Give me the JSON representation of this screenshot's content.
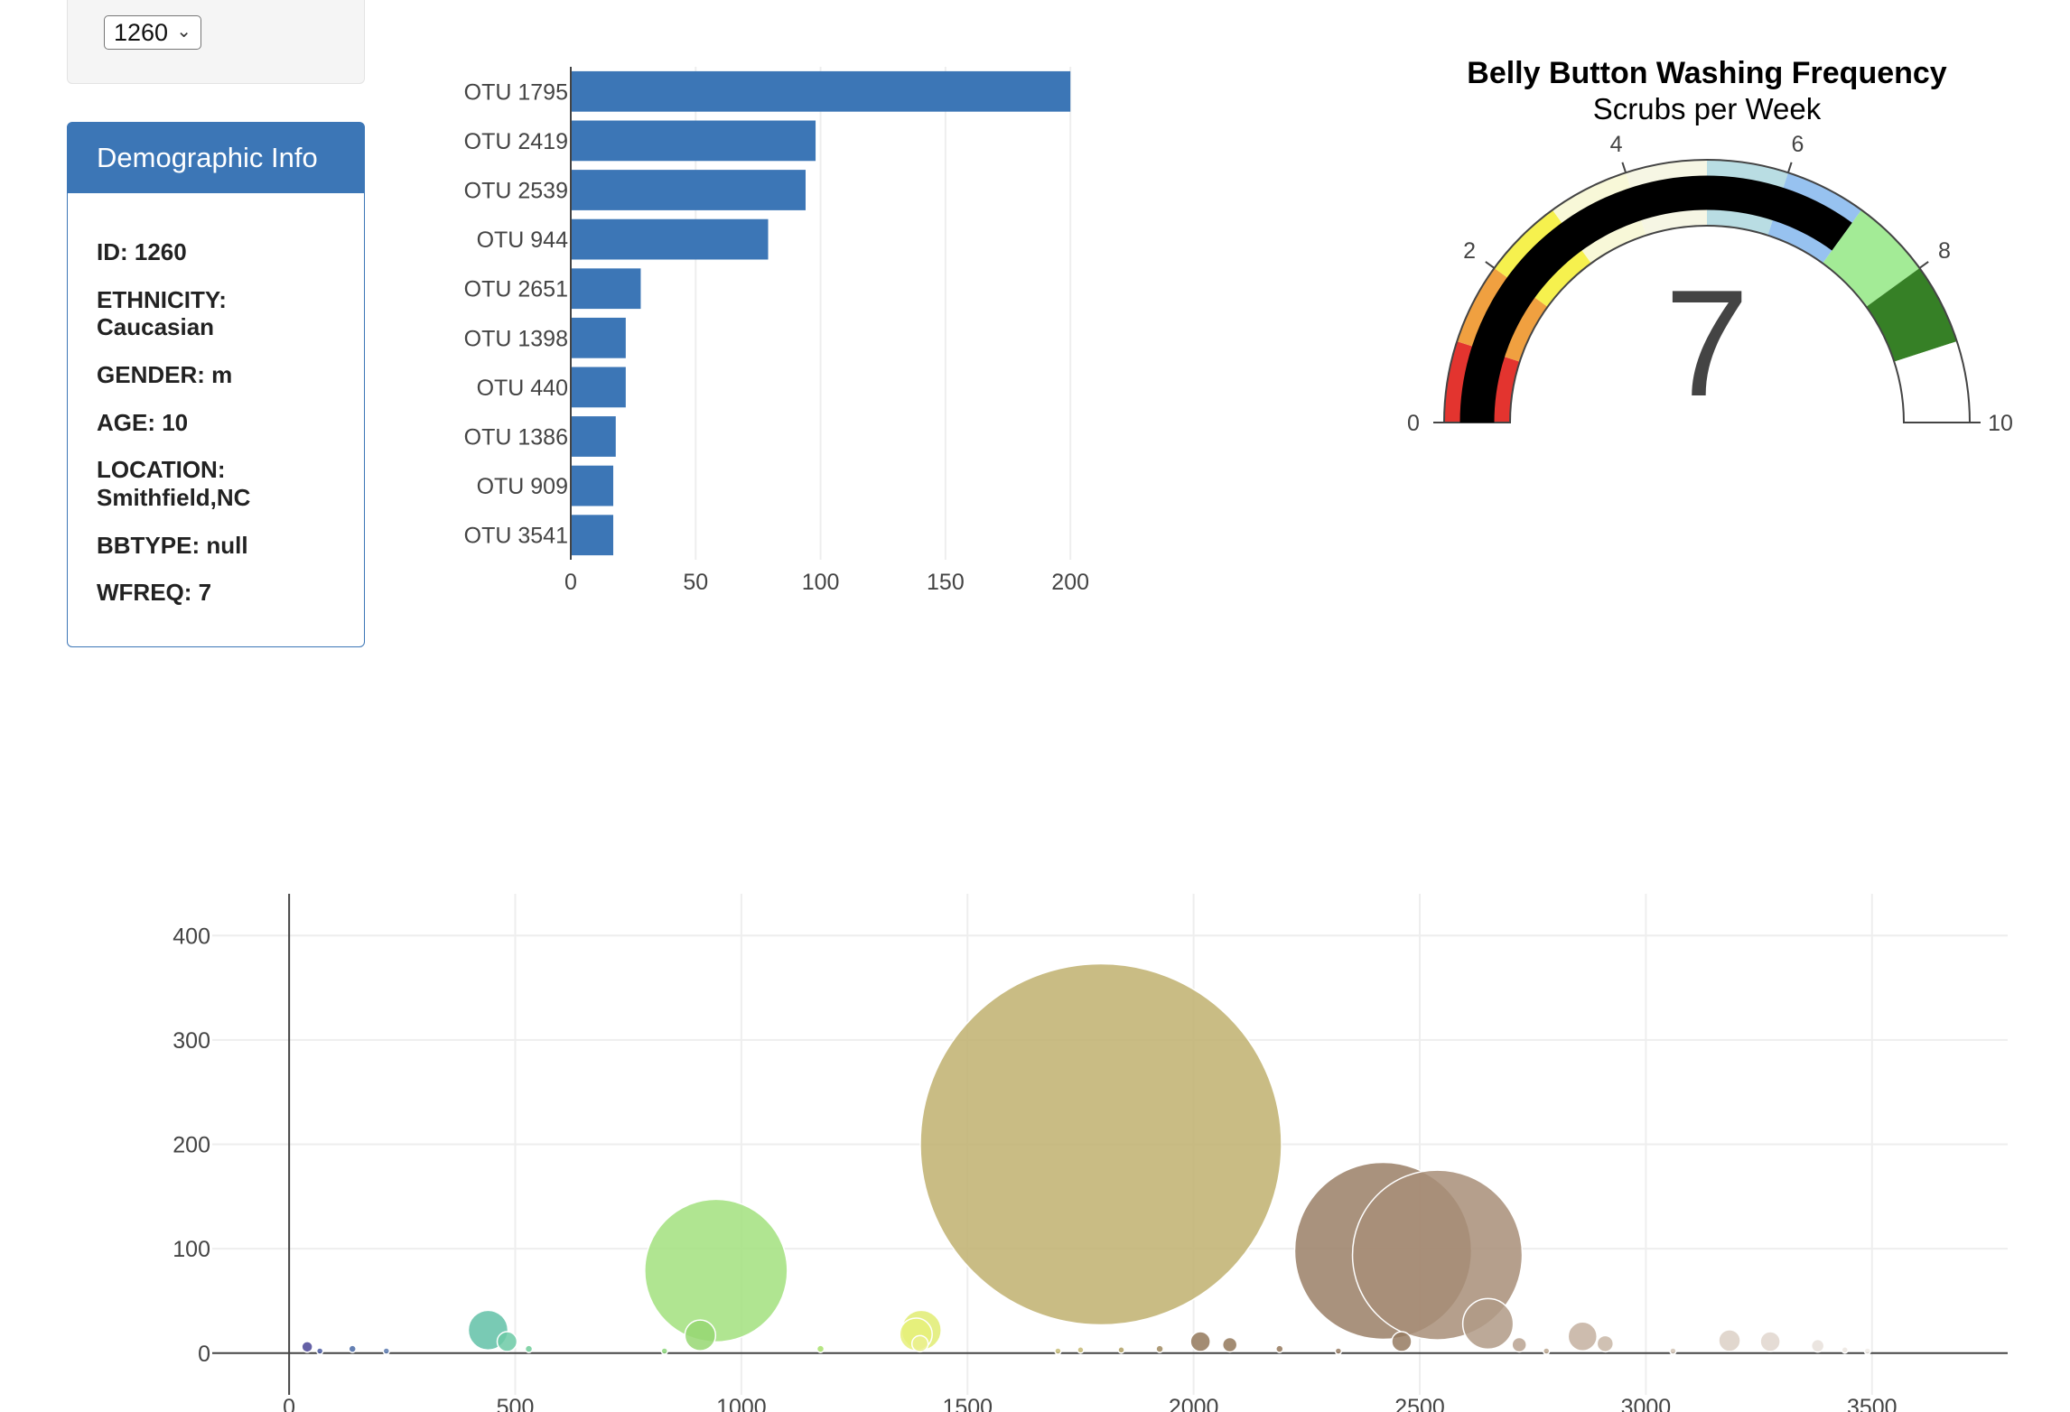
{
  "selector": {
    "selected_value": "1260"
  },
  "demographics": {
    "heading": "Demographic Info",
    "items": [
      "ID: 1260",
      "ETHNICITY: Caucasian",
      "GENDER: m",
      "AGE: 10",
      "LOCATION: Smithfield,NC",
      "BBTYPE: null",
      "WFREQ: 7"
    ]
  },
  "chart_data": [
    {
      "type": "bar",
      "orientation": "horizontal",
      "categories": [
        "OTU 1795",
        "OTU 2419",
        "OTU 2539",
        "OTU 944",
        "OTU 2651",
        "OTU 1398",
        "OTU 440",
        "OTU 1386",
        "OTU 909",
        "OTU 3541"
      ],
      "values": [
        200,
        98,
        94,
        79,
        28,
        22,
        22,
        18,
        17,
        17
      ],
      "xlim": [
        0,
        205
      ],
      "xticks": [
        0,
        50,
        100,
        150,
        200
      ],
      "grid": true,
      "color": "#3c76b6"
    },
    {
      "type": "gauge",
      "title": "Belly Button Washing Frequency",
      "subtitle": "Scrubs per Week",
      "value": 7,
      "range": [
        0,
        10
      ],
      "ticks": [
        0,
        2,
        4,
        6,
        8,
        10
      ],
      "bar_color": "#000000",
      "steps": [
        {
          "range": [
            0,
            1
          ],
          "color": "#e3342f"
        },
        {
          "range": [
            1,
            2
          ],
          "color": "#f0a040"
        },
        {
          "range": [
            2,
            3
          ],
          "color": "#f6f14e"
        },
        {
          "range": [
            3,
            4
          ],
          "color": "#f8f8d8"
        },
        {
          "range": [
            4,
            5
          ],
          "color": "#f6f6e4"
        },
        {
          "range": [
            5,
            6
          ],
          "color": "#b9dde3"
        },
        {
          "range": [
            6,
            7
          ],
          "color": "#97c2f0"
        },
        {
          "range": [
            7,
            8
          ],
          "color": "#a3eb96"
        },
        {
          "range": [
            8,
            9
          ],
          "color": "#368026"
        },
        {
          "range": [
            9,
            10
          ],
          "color": "#ffffff"
        }
      ]
    },
    {
      "type": "scatter",
      "subtype": "bubble",
      "xlim": [
        -170,
        3800
      ],
      "ylim": [
        -40,
        440
      ],
      "xticks": [
        0,
        500,
        1000,
        1500,
        2000,
        2500,
        3000,
        3500
      ],
      "yticks": [
        0,
        100,
        200,
        300,
        400
      ],
      "grid": true,
      "points": [
        {
          "x": 40,
          "y": 6,
          "color": "#4a4597"
        },
        {
          "x": 68,
          "y": 2,
          "color": "#4a5aa0"
        },
        {
          "x": 140,
          "y": 4,
          "color": "#4a6aa6"
        },
        {
          "x": 215,
          "y": 2,
          "color": "#5a7ab0"
        },
        {
          "x": 440,
          "y": 22,
          "color": "#62c1a7"
        },
        {
          "x": 482,
          "y": 11,
          "color": "#6ccaa6"
        },
        {
          "x": 530,
          "y": 4,
          "color": "#70cc9a"
        },
        {
          "x": 830,
          "y": 2,
          "color": "#8cd67a"
        },
        {
          "x": 909,
          "y": 17,
          "color": "#96d772"
        },
        {
          "x": 944,
          "y": 79,
          "color": "#a2e07e"
        },
        {
          "x": 1175,
          "y": 4,
          "color": "#a8e06c"
        },
        {
          "x": 1398,
          "y": 22,
          "color": "#e0ec72"
        },
        {
          "x": 1386,
          "y": 18,
          "color": "#e6f07a"
        },
        {
          "x": 1395,
          "y": 9,
          "color": "#eaf090"
        },
        {
          "x": 1700,
          "y": 2,
          "color": "#c8bd7a"
        },
        {
          "x": 1750,
          "y": 3,
          "color": "#c6b874"
        },
        {
          "x": 1795,
          "y": 200,
          "color": "#bfb06e"
        },
        {
          "x": 1840,
          "y": 3,
          "color": "#b0a064"
        },
        {
          "x": 1925,
          "y": 4,
          "color": "#a08a60"
        },
        {
          "x": 2015,
          "y": 11,
          "color": "#93785a"
        },
        {
          "x": 2080,
          "y": 8,
          "color": "#93785a"
        },
        {
          "x": 2190,
          "y": 4,
          "color": "#94785c"
        },
        {
          "x": 2320,
          "y": 2,
          "color": "#9a7f66"
        },
        {
          "x": 2419,
          "y": 98,
          "color": "#9a7f66"
        },
        {
          "x": 2460,
          "y": 11,
          "color": "#957a60"
        },
        {
          "x": 2539,
          "y": 94,
          "color": "#a88e78"
        },
        {
          "x": 2651,
          "y": 28,
          "color": "#b09a86"
        },
        {
          "x": 2720,
          "y": 8,
          "color": "#b8a290"
        },
        {
          "x": 2780,
          "y": 2,
          "color": "#bca892"
        },
        {
          "x": 2860,
          "y": 16,
          "color": "#c4b0a0"
        },
        {
          "x": 2910,
          "y": 9,
          "color": "#c8b6a6"
        },
        {
          "x": 3060,
          "y": 2,
          "color": "#d2c4b6"
        },
        {
          "x": 3185,
          "y": 12,
          "color": "#dcd0c6"
        },
        {
          "x": 3275,
          "y": 11,
          "color": "#e0d6ce"
        },
        {
          "x": 3380,
          "y": 7,
          "color": "#e8e0da"
        },
        {
          "x": 3440,
          "y": 3,
          "color": "#ece6e0"
        },
        {
          "x": 3490,
          "y": 2,
          "color": "#f0ece8"
        }
      ]
    }
  ]
}
